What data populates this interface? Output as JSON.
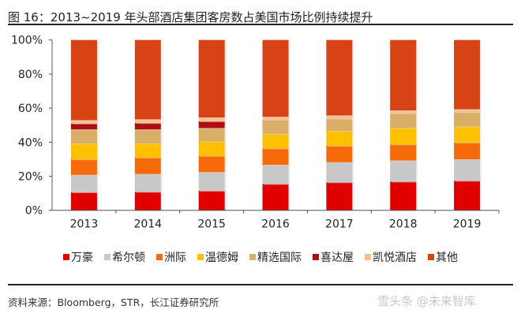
{
  "title": "图 16：2013~2019 年头部酒店集团客房数占美国市场比例持续提升",
  "source": "资料来源：Bloomberg，STR，长江证券研究所",
  "watermark": "雪头条 @未来智库",
  "chart_data": {
    "type": "bar",
    "stacked": true,
    "categories": [
      "2013",
      "2014",
      "2015",
      "2016",
      "2017",
      "2018",
      "2019"
    ],
    "ylim": [
      0,
      100
    ],
    "yticks": [
      "0%",
      "20%",
      "40%",
      "60%",
      "80%",
      "100%"
    ],
    "legend_position": "bottom",
    "grid": false,
    "series": [
      {
        "name": "万豪",
        "color": "#e00000",
        "values": [
          10.5,
          10.8,
          11.4,
          15.4,
          16.4,
          16.8,
          17.3
        ]
      },
      {
        "name": "希尔顿",
        "color": "#c8c8c8",
        "values": [
          10.3,
          10.5,
          11.0,
          11.3,
          11.8,
          12.4,
          12.6
        ]
      },
      {
        "name": "洲际",
        "color": "#f76a0a",
        "values": [
          9.1,
          9.6,
          9.5,
          9.6,
          9.6,
          9.5,
          9.8
        ]
      },
      {
        "name": "温德姆",
        "color": "#ffc000",
        "values": [
          9.3,
          8.3,
          8.5,
          8.5,
          8.8,
          9.6,
          9.5
        ]
      },
      {
        "name": "精选国际",
        "color": "#d9ae66",
        "values": [
          8.3,
          8.3,
          7.9,
          8.3,
          7.1,
          8.5,
          8.4
        ]
      },
      {
        "name": "喜达屋",
        "color": "#b00c14",
        "values": [
          3.4,
          3.7,
          3.9,
          0,
          0,
          0,
          0
        ]
      },
      {
        "name": "凯悦酒店",
        "color": "#f9c08e",
        "values": [
          2.0,
          2.2,
          2.3,
          1.8,
          2.0,
          1.8,
          1.7
        ]
      },
      {
        "name": "其他",
        "color": "#d84315",
        "values": [
          47.1,
          46.6,
          45.5,
          45.1,
          44.3,
          41.4,
          40.7
        ]
      }
    ]
  }
}
